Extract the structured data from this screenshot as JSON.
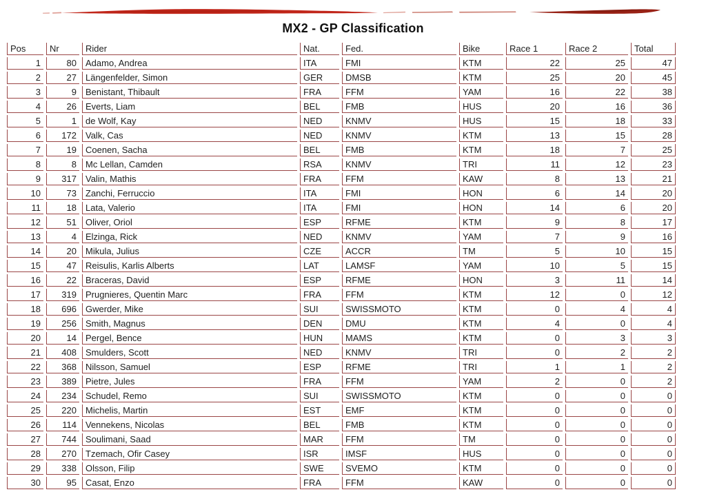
{
  "title": "MX2 - GP Classification",
  "brush": {
    "description": "red-paint-brush-stroke",
    "color_main": "#c1261a",
    "color_dark": "#992216",
    "color_core": "#aa1f12"
  },
  "table": {
    "border_color": "#9a4545",
    "columns": [
      {
        "label": "Pos",
        "align": "right"
      },
      {
        "label": "Nr",
        "align": "right"
      },
      {
        "label": "Rider",
        "align": "left"
      },
      {
        "label": "Nat.",
        "align": "left"
      },
      {
        "label": "Fed.",
        "align": "left"
      },
      {
        "label": "Bike",
        "align": "left"
      },
      {
        "label": "Race 1",
        "align": "right"
      },
      {
        "label": "Race 2",
        "align": "right"
      },
      {
        "label": "Total",
        "align": "right"
      }
    ],
    "rows": [
      [
        "1",
        "80",
        "Adamo, Andrea",
        "ITA",
        "FMI",
        "KTM",
        "22",
        "25",
        "47"
      ],
      [
        "2",
        "27",
        "Längenfelder, Simon",
        "GER",
        "DMSB",
        "KTM",
        "25",
        "20",
        "45"
      ],
      [
        "3",
        "9",
        "Benistant, Thibault",
        "FRA",
        "FFM",
        "YAM",
        "16",
        "22",
        "38"
      ],
      [
        "4",
        "26",
        "Everts, Liam",
        "BEL",
        "FMB",
        "HUS",
        "20",
        "16",
        "36"
      ],
      [
        "5",
        "1",
        "de Wolf, Kay",
        "NED",
        "KNMV",
        "HUS",
        "15",
        "18",
        "33"
      ],
      [
        "6",
        "172",
        "Valk, Cas",
        "NED",
        "KNMV",
        "KTM",
        "13",
        "15",
        "28"
      ],
      [
        "7",
        "19",
        "Coenen, Sacha",
        "BEL",
        "FMB",
        "KTM",
        "18",
        "7",
        "25"
      ],
      [
        "8",
        "8",
        "Mc Lellan, Camden",
        "RSA",
        "KNMV",
        "TRI",
        "11",
        "12",
        "23"
      ],
      [
        "9",
        "317",
        "Valin, Mathis",
        "FRA",
        "FFM",
        "KAW",
        "8",
        "13",
        "21"
      ],
      [
        "10",
        "73",
        "Zanchi, Ferruccio",
        "ITA",
        "FMI",
        "HON",
        "6",
        "14",
        "20"
      ],
      [
        "11",
        "18",
        "Lata, Valerio",
        "ITA",
        "FMI",
        "HON",
        "14",
        "6",
        "20"
      ],
      [
        "12",
        "51",
        "Oliver, Oriol",
        "ESP",
        "RFME",
        "KTM",
        "9",
        "8",
        "17"
      ],
      [
        "13",
        "4",
        "Elzinga, Rick",
        "NED",
        "KNMV",
        "YAM",
        "7",
        "9",
        "16"
      ],
      [
        "14",
        "20",
        "Mikula, Julius",
        "CZE",
        "ACCR",
        "TM",
        "5",
        "10",
        "15"
      ],
      [
        "15",
        "47",
        "Reisulis, Karlis Alberts",
        "LAT",
        "LAMSF",
        "YAM",
        "10",
        "5",
        "15"
      ],
      [
        "16",
        "22",
        "Braceras, David",
        "ESP",
        "RFME",
        "HON",
        "3",
        "11",
        "14"
      ],
      [
        "17",
        "319",
        "Prugnieres, Quentin Marc",
        "FRA",
        "FFM",
        "KTM",
        "12",
        "0",
        "12"
      ],
      [
        "18",
        "696",
        "Gwerder, Mike",
        "SUI",
        "SWISSMOTO",
        "KTM",
        "0",
        "4",
        "4"
      ],
      [
        "19",
        "256",
        "Smith, Magnus",
        "DEN",
        "DMU",
        "KTM",
        "4",
        "0",
        "4"
      ],
      [
        "20",
        "14",
        "Pergel, Bence",
        "HUN",
        "MAMS",
        "KTM",
        "0",
        "3",
        "3"
      ],
      [
        "21",
        "408",
        "Smulders, Scott",
        "NED",
        "KNMV",
        "TRI",
        "0",
        "2",
        "2"
      ],
      [
        "22",
        "368",
        "Nilsson, Samuel",
        "ESP",
        "RFME",
        "TRI",
        "1",
        "1",
        "2"
      ],
      [
        "23",
        "389",
        "Pietre, Jules",
        "FRA",
        "FFM",
        "YAM",
        "2",
        "0",
        "2"
      ],
      [
        "24",
        "234",
        "Schudel, Remo",
        "SUI",
        "SWISSMOTO",
        "KTM",
        "0",
        "0",
        "0"
      ],
      [
        "25",
        "220",
        "Michelis, Martin",
        "EST",
        "EMF",
        "KTM",
        "0",
        "0",
        "0"
      ],
      [
        "26",
        "114",
        "Vennekens, Nicolas",
        "BEL",
        "FMB",
        "KTM",
        "0",
        "0",
        "0"
      ],
      [
        "27",
        "744",
        "Soulimani, Saad",
        "MAR",
        "FFM",
        "TM",
        "0",
        "0",
        "0"
      ],
      [
        "28",
        "270",
        "Tzemach, Ofir Casey",
        "ISR",
        "IMSF",
        "HUS",
        "0",
        "0",
        "0"
      ],
      [
        "29",
        "338",
        "Olsson, Filip",
        "SWE",
        "SVEMO",
        "KTM",
        "0",
        "0",
        "0"
      ],
      [
        "30",
        "95",
        "Casat, Enzo",
        "FRA",
        "FFM",
        "KAW",
        "0",
        "0",
        "0"
      ]
    ]
  }
}
